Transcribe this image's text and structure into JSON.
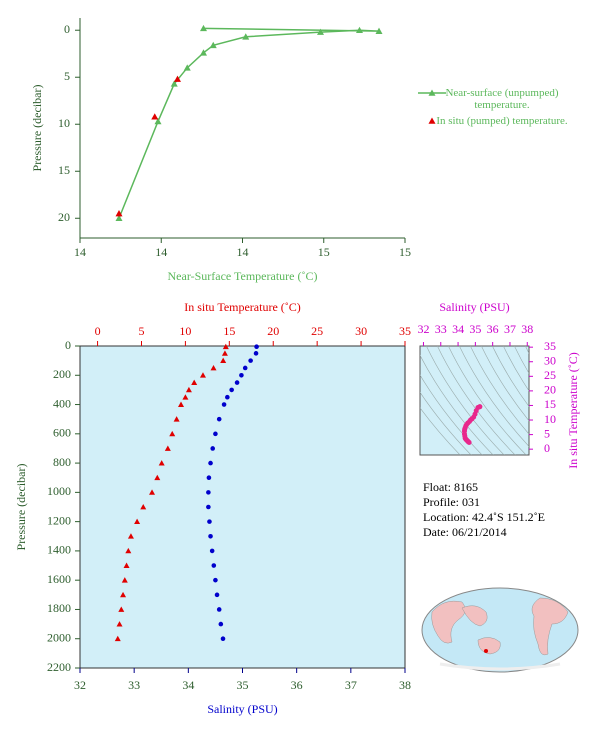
{
  "chart_data": [
    {
      "type": "line",
      "xlabel": "Near-Surface Temperature (˚C)",
      "ylabel": "Pressure (decibar)",
      "xlim": [
        14.0,
        15.0
      ],
      "xticks": [
        {
          "value": 14.0,
          "label": "14"
        },
        {
          "value": 14.25,
          "label": "14"
        },
        {
          "value": 14.5,
          "label": "14"
        },
        {
          "value": 14.75,
          "label": "15"
        },
        {
          "value": 15.0,
          "label": "15"
        }
      ],
      "ylim": [
        -1.3,
        22.1
      ],
      "yticks": [
        0,
        5,
        10,
        15,
        20
      ],
      "y_inverted": true,
      "legend": "right",
      "series": [
        {
          "name": "Near-surface (unpumped) temperature.",
          "color": "#5cb85c",
          "marker": "triangle",
          "line": true,
          "x": [
            14.12,
            14.24,
            14.29,
            14.33,
            14.38,
            14.41,
            14.51,
            14.74,
            14.86,
            14.92,
            14.38
          ],
          "values": [
            20,
            9.7,
            5.7,
            4.0,
            2.4,
            1.6,
            0.7,
            0.2,
            0.0,
            0.1,
            -0.2
          ]
        },
        {
          "name": "In situ (pumped) temperature.",
          "color": "#e00000",
          "marker": "triangle",
          "line": false,
          "x": [
            14.12,
            14.23,
            14.3
          ],
          "values": [
            19.5,
            9.2,
            5.2
          ]
        }
      ]
    },
    {
      "type": "profile",
      "ylabel": "Pressure (decibar)",
      "ylim": [
        0,
        2200
      ],
      "yticks": [
        0,
        200,
        400,
        600,
        800,
        1000,
        1200,
        1400,
        1600,
        1800,
        2000,
        2200
      ],
      "y_inverted": true,
      "xlabel": "Salinity (PSU)",
      "xlim": [
        32,
        38
      ],
      "xticks": [
        32,
        33,
        34,
        35,
        36,
        37,
        38
      ],
      "x2label": "In situ Temperature (˚C)",
      "x2lim": [
        -2,
        35
      ],
      "x2ticks": [
        0,
        5,
        10,
        15,
        20,
        25,
        30,
        35
      ],
      "pressure": [
        5,
        50,
        100,
        150,
        200,
        250,
        300,
        350,
        400,
        500,
        600,
        700,
        800,
        900,
        1000,
        1100,
        1200,
        1300,
        1400,
        1500,
        1600,
        1700,
        1800,
        1900,
        2000
      ],
      "series": [
        {
          "axis": "x2",
          "color": "#e00000",
          "marker": "triangle",
          "values": [
            14.6,
            14.5,
            14.3,
            13.2,
            12.0,
            11.0,
            10.4,
            10.0,
            9.5,
            9.0,
            8.5,
            8.0,
            7.3,
            6.8,
            6.2,
            5.2,
            4.5,
            3.8,
            3.5,
            3.3,
            3.1,
            2.9,
            2.7,
            2.5,
            2.3
          ]
        },
        {
          "axis": "x",
          "color": "#0000cc",
          "marker": "circle",
          "values": [
            35.26,
            35.25,
            35.15,
            35.05,
            34.98,
            34.9,
            34.8,
            34.72,
            34.66,
            34.57,
            34.5,
            34.45,
            34.41,
            34.38,
            34.37,
            34.37,
            34.39,
            34.41,
            34.44,
            34.47,
            34.5,
            34.53,
            34.57,
            34.6,
            34.64
          ]
        }
      ]
    },
    {
      "type": "scatter",
      "xlabel": "Salinity (PSU)",
      "ylabel": "In situ Temperature (˚C)",
      "xlim": [
        31.8,
        38.1
      ],
      "xticks": [
        32,
        33,
        34,
        35,
        36,
        37,
        38
      ],
      "ylim": [
        -2,
        35.4
      ],
      "yticks": [
        0,
        5,
        10,
        15,
        20,
        25,
        30,
        35
      ],
      "color": "#e8288c",
      "x": [
        35.26,
        35.25,
        35.15,
        35.05,
        34.98,
        34.9,
        34.8,
        34.72,
        34.66,
        34.57,
        34.5,
        34.45,
        34.41,
        34.38,
        34.37,
        34.37,
        34.39,
        34.41,
        34.44,
        34.47,
        34.5,
        34.53,
        34.57,
        34.6,
        34.64
      ],
      "values": [
        14.6,
        14.5,
        14.3,
        13.2,
        12.0,
        11.0,
        10.4,
        10.0,
        9.5,
        9.0,
        8.5,
        8.0,
        7.3,
        6.8,
        6.2,
        5.2,
        4.5,
        3.8,
        3.5,
        3.3,
        3.1,
        2.9,
        2.7,
        2.5,
        2.3
      ]
    }
  ],
  "info": [
    "Float:  8165",
    "Profile:  031",
    "Location:  42.4˚S  151.2˚E",
    "Date:  06/21/2014"
  ]
}
